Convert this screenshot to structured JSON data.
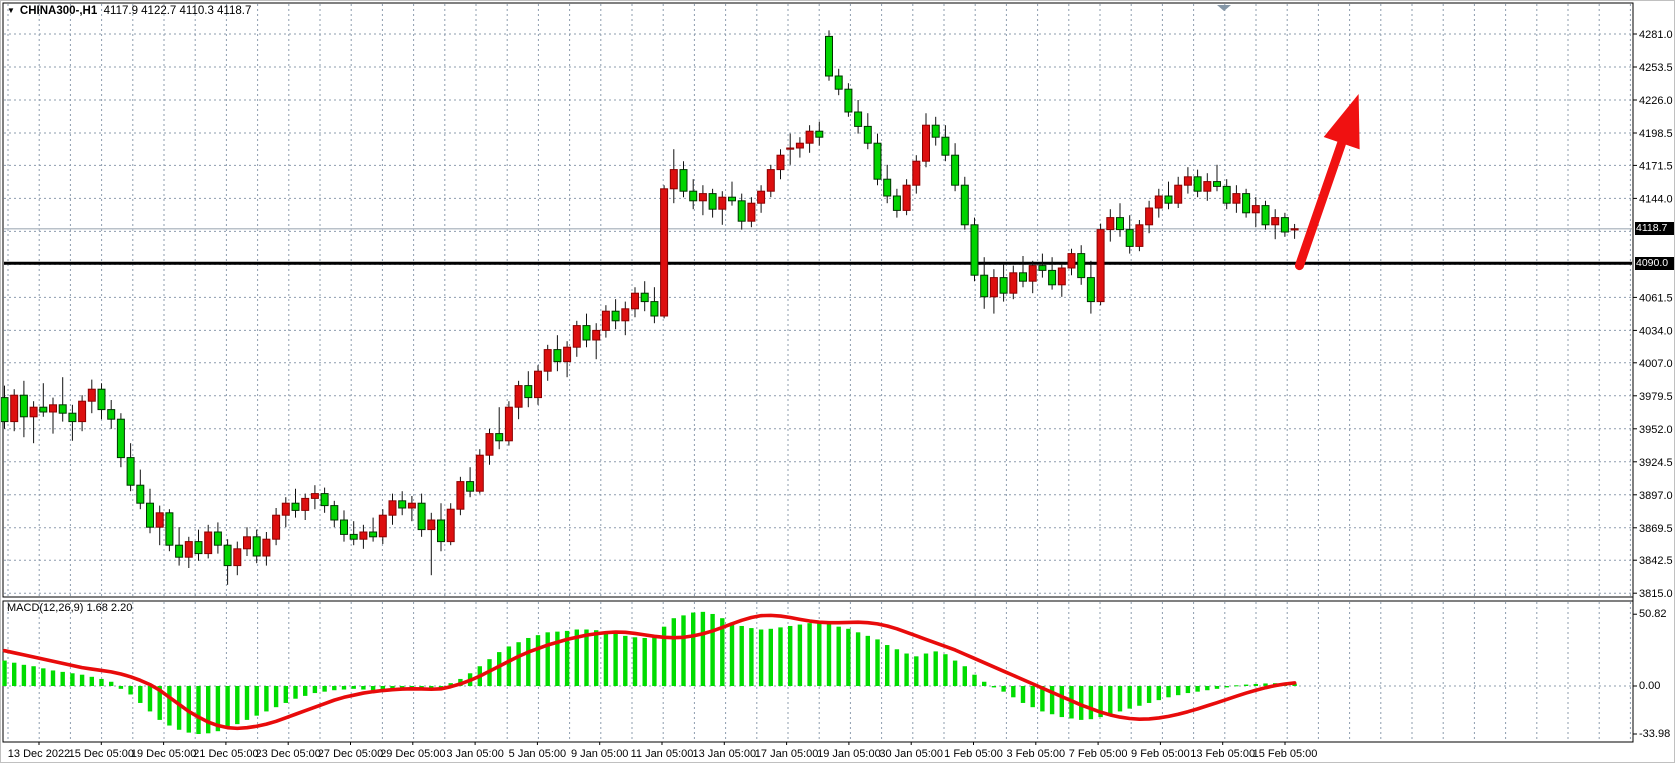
{
  "window": {
    "symbol_period": "CHINA300-,H1",
    "ohlc_readout": "4117.9 4122.7 4110.3 4118.7",
    "macd_label": "MACD(12,26,9) 1.68 2.20",
    "current_price_tag": "4118.7",
    "support_price_tag": "4090.0"
  },
  "colors": {
    "bull_body": "#dd0f0f",
    "bull_border": "#8b0000",
    "bear_body": "#00d400",
    "bear_border": "#003300",
    "wick": "#111111",
    "grid": "#8d9cae",
    "current_price_line": "#b9c1c9",
    "support_line": "#000000",
    "macd_hist": "#00dc00",
    "macd_signal": "#e80b0b",
    "arrow": "#f01111",
    "axis_text": "#000000",
    "scroll_marker": "#8496a6"
  },
  "chart_data": [
    {
      "type": "candlestick",
      "title": "CHINA300-,H1",
      "last_ohlc": {
        "open": 4117.9,
        "high": 4122.7,
        "low": 4110.3,
        "close": 4118.7
      },
      "bull_color_meaning": "red = close>open, green = close<open",
      "y_axis_labels": [
        "4281.0",
        "4253.5",
        "4226.0",
        "4198.5",
        "4171.5",
        "4144.0",
        "4061.5",
        "4034.0",
        "4007.0",
        "3979.5",
        "3952.0",
        "3924.5",
        "3897.0",
        "3869.5",
        "3842.5",
        "3815.0"
      ],
      "y_grid_prices": [
        4281,
        4253.5,
        4226,
        4198.5,
        4171.5,
        4144,
        4116.5,
        4089,
        4061.5,
        4034,
        4007,
        3979.5,
        3952,
        3924.5,
        3897,
        3869.5,
        3842.5,
        3815
      ],
      "ylim": [
        3815,
        4281
      ],
      "x_axis_labels": [
        "13 Dec 2022",
        "15 Dec 05:00",
        "19 Dec 05:00",
        "21 Dec 05:00",
        "23 Dec 05:00",
        "27 Dec 05:00",
        "29 Dec 05:00",
        "3 Jan 05:00",
        "5 Jan 05:00",
        "9 Jan 05:00",
        "11 Jan 05:00",
        "13 Jan 05:00",
        "17 Jan 05:00",
        "19 Jan 05:00",
        "30 Jan 05:00",
        "1 Feb 05:00",
        "3 Feb 05:00",
        "7 Feb 05:00",
        "9 Feb 05:00",
        "13 Feb 05:00",
        "15 Feb 05:00"
      ],
      "support_line_price": 4090.0,
      "current_price": 4118.7,
      "annotation_arrow": {
        "from_candle": 133.5,
        "from_price": 4088,
        "to_candle": 139.6,
        "to_price": 4231
      },
      "candles": [
        [
          3978,
          3988,
          3952,
          3958
        ],
        [
          3958,
          3985,
          3950,
          3980
        ],
        [
          3980,
          3992,
          3945,
          3962
        ],
        [
          3962,
          3975,
          3940,
          3970
        ],
        [
          3970,
          3990,
          3962,
          3966
        ],
        [
          3966,
          3978,
          3948,
          3972
        ],
        [
          3972,
          3995,
          3958,
          3965
        ],
        [
          3965,
          3972,
          3942,
          3958
        ],
        [
          3958,
          3980,
          3950,
          3975
        ],
        [
          3975,
          3993,
          3965,
          3985
        ],
        [
          3985,
          3990,
          3960,
          3968
        ],
        [
          3968,
          3976,
          3952,
          3960
        ],
        [
          3960,
          3965,
          3920,
          3928
        ],
        [
          3928,
          3940,
          3900,
          3905
        ],
        [
          3905,
          3918,
          3885,
          3890
        ],
        [
          3890,
          3902,
          3865,
          3870
        ],
        [
          3870,
          3888,
          3855,
          3882
        ],
        [
          3882,
          3885,
          3850,
          3855
        ],
        [
          3855,
          3870,
          3838,
          3845
        ],
        [
          3845,
          3862,
          3836,
          3858
        ],
        [
          3858,
          3868,
          3842,
          3848
        ],
        [
          3848,
          3872,
          3844,
          3866
        ],
        [
          3866,
          3874,
          3848,
          3855
        ],
        [
          3855,
          3860,
          3822,
          3838
        ],
        [
          3838,
          3858,
          3830,
          3852
        ],
        [
          3852,
          3870,
          3846,
          3862
        ],
        [
          3862,
          3868,
          3840,
          3846
        ],
        [
          3846,
          3866,
          3838,
          3860
        ],
        [
          3860,
          3886,
          3855,
          3880
        ],
        [
          3880,
          3895,
          3870,
          3890
        ],
        [
          3890,
          3902,
          3878,
          3884
        ],
        [
          3884,
          3898,
          3876,
          3894
        ],
        [
          3894,
          3905,
          3885,
          3898
        ],
        [
          3898,
          3903,
          3882,
          3888
        ],
        [
          3888,
          3892,
          3870,
          3876
        ],
        [
          3876,
          3884,
          3858,
          3864
        ],
        [
          3864,
          3875,
          3855,
          3860
        ],
        [
          3860,
          3872,
          3852,
          3866
        ],
        [
          3866,
          3878,
          3858,
          3862
        ],
        [
          3862,
          3885,
          3856,
          3880
        ],
        [
          3880,
          3898,
          3872,
          3892
        ],
        [
          3892,
          3900,
          3880,
          3886
        ],
        [
          3886,
          3896,
          3875,
          3890
        ],
        [
          3890,
          3898,
          3862,
          3868
        ],
        [
          3868,
          3882,
          3830,
          3876
        ],
        [
          3876,
          3890,
          3850,
          3858
        ],
        [
          3858,
          3890,
          3855,
          3885
        ],
        [
          3885,
          3912,
          3880,
          3908
        ],
        [
          3908,
          3920,
          3895,
          3900
        ],
        [
          3900,
          3935,
          3898,
          3930
        ],
        [
          3930,
          3952,
          3922,
          3948
        ],
        [
          3948,
          3970,
          3935,
          3942
        ],
        [
          3942,
          3975,
          3938,
          3970
        ],
        [
          3970,
          3992,
          3960,
          3988
        ],
        [
          3988,
          4000,
          3970,
          3978
        ],
        [
          3978,
          4005,
          3972,
          4000
        ],
        [
          4000,
          4022,
          3992,
          4018
        ],
        [
          4018,
          4030,
          4000,
          4008
        ],
        [
          4008,
          4025,
          3995,
          4020
        ],
        [
          4020,
          4042,
          4012,
          4038
        ],
        [
          4038,
          4048,
          4020,
          4026
        ],
        [
          4026,
          4040,
          4010,
          4034
        ],
        [
          4034,
          4055,
          4028,
          4050
        ],
        [
          4050,
          4060,
          4035,
          4042
        ],
        [
          4042,
          4058,
          4030,
          4052
        ],
        [
          4052,
          4070,
          4045,
          4065
        ],
        [
          4065,
          4075,
          4050,
          4058
        ],
        [
          4058,
          4070,
          4040,
          4046
        ],
        [
          4046,
          4155,
          4044,
          4152
        ],
        [
          4152,
          4185,
          4140,
          4168
        ],
        [
          4168,
          4175,
          4145,
          4150
        ],
        [
          4150,
          4160,
          4135,
          4142
        ],
        [
          4142,
          4155,
          4130,
          4148
        ],
        [
          4148,
          4152,
          4128,
          4135
        ],
        [
          4135,
          4150,
          4122,
          4145
        ],
        [
          4145,
          4158,
          4138,
          4142
        ],
        [
          4142,
          4148,
          4118,
          4125
        ],
        [
          4125,
          4145,
          4120,
          4140
        ],
        [
          4140,
          4155,
          4132,
          4150
        ],
        [
          4150,
          4172,
          4145,
          4168
        ],
        [
          4168,
          4185,
          4160,
          4180
        ],
        [
          4186,
          4198,
          4172,
          4186
        ],
        [
          4186,
          4195,
          4178,
          4190
        ],
        [
          4190,
          4205,
          4182,
          4200
        ],
        [
          4200,
          4208,
          4188,
          4195
        ],
        [
          4279,
          4284,
          4242,
          4246
        ],
        [
          4246,
          4252,
          4230,
          4235
        ],
        [
          4235,
          4240,
          4212,
          4216
        ],
        [
          4216,
          4226,
          4198,
          4204
        ],
        [
          4204,
          4215,
          4185,
          4190
        ],
        [
          4190,
          4198,
          4155,
          4160
        ],
        [
          4160,
          4172,
          4140,
          4146
        ],
        [
          4146,
          4152,
          4128,
          4134
        ],
        [
          4134,
          4160,
          4130,
          4155
        ],
        [
          4155,
          4180,
          4148,
          4175
        ],
        [
          4175,
          4215,
          4170,
          4205
        ],
        [
          4205,
          4212,
          4188,
          4195
        ],
        [
          4195,
          4205,
          4175,
          4180
        ],
        [
          4180,
          4190,
          4150,
          4155
        ],
        [
          4155,
          4162,
          4118,
          4122
        ],
        [
          4122,
          4128,
          4075,
          4080
        ],
        [
          4080,
          4095,
          4052,
          4062
        ],
        [
          4062,
          4085,
          4048,
          4078
        ],
        [
          4078,
          4090,
          4058,
          4065
        ],
        [
          4065,
          4088,
          4060,
          4082
        ],
        [
          4082,
          4096,
          4070,
          4075
        ],
        [
          4075,
          4092,
          4065,
          4088
        ],
        [
          4088,
          4098,
          4078,
          4084
        ],
        [
          4084,
          4095,
          4068,
          4072
        ],
        [
          4072,
          4090,
          4062,
          4086
        ],
        [
          4086,
          4102,
          4080,
          4098
        ],
        [
          4098,
          4105,
          4072,
          4078
        ],
        [
          4078,
          4092,
          4048,
          4058
        ],
        [
          4058,
          4123,
          4055,
          4118
        ],
        [
          4118,
          4135,
          4108,
          4128
        ],
        [
          4128,
          4140,
          4112,
          4118
        ],
        [
          4118,
          4130,
          4098,
          4104
        ],
        [
          4104,
          4126,
          4100,
          4122
        ],
        [
          4122,
          4142,
          4115,
          4136
        ],
        [
          4136,
          4152,
          4128,
          4146
        ],
        [
          4146,
          4158,
          4135,
          4140
        ],
        [
          4140,
          4162,
          4136,
          4155
        ],
        [
          4155,
          4170,
          4148,
          4162
        ],
        [
          4162,
          4168,
          4145,
          4150
        ],
        [
          4150,
          4165,
          4142,
          4158
        ],
        [
          4158,
          4172,
          4150,
          4154
        ],
        [
          4154,
          4160,
          4135,
          4140
        ],
        [
          4140,
          4155,
          4132,
          4148
        ],
        [
          4148,
          4152,
          4128,
          4132
        ],
        [
          4132,
          4145,
          4120,
          4138
        ],
        [
          4138,
          4142,
          4118,
          4122
        ],
        [
          4122,
          4135,
          4110,
          4128
        ],
        [
          4128,
          4132,
          4112,
          4116
        ],
        [
          4117.9,
          4122.7,
          4110.3,
          4118.7
        ]
      ]
    },
    {
      "type": "bar",
      "title": "MACD(12,26,9)",
      "current_values": {
        "macd": 1.68,
        "signal": 2.2
      },
      "y_ticks": [
        {
          "label": "50.82",
          "value": 50.82
        },
        {
          "label": "0.00",
          "value": 0
        },
        {
          "label": "-33.98",
          "value": -33.98
        }
      ],
      "ylim": [
        -33.98,
        50.82
      ],
      "histogram": [
        18,
        16.5,
        15,
        14,
        12.5,
        11,
        10,
        9,
        8,
        6.5,
        5,
        3,
        -2,
        -6,
        -12,
        -18,
        -24,
        -28,
        -31,
        -33,
        -34,
        -33.5,
        -32,
        -30,
        -27,
        -24,
        -21,
        -18,
        -15,
        -12,
        -9,
        -7,
        -5,
        -4,
        -3,
        -2.5,
        -2,
        -2.5,
        -3,
        -3.5,
        -3,
        -2.5,
        -2,
        -2.5,
        -3,
        -2,
        2,
        5,
        9,
        14,
        19,
        24,
        28,
        31,
        34,
        36,
        38,
        38.5,
        39,
        40,
        40,
        39.5,
        38.5,
        37,
        35.5,
        34.5,
        34,
        36,
        42,
        48,
        50,
        52,
        52.5,
        51,
        48,
        45,
        42.5,
        41,
        40,
        40.5,
        41.5,
        42.5,
        43.5,
        44.5,
        45,
        44,
        42,
        40.5,
        38,
        35.5,
        33,
        29,
        26,
        23,
        21,
        23,
        24.5,
        22.5,
        18,
        14,
        8,
        3,
        -1,
        -4,
        -8,
        -12,
        -15,
        -18,
        -20,
        -22,
        -23,
        -24,
        -23.5,
        -22,
        -20,
        -18,
        -16,
        -14,
        -12,
        -10,
        -8,
        -6.5,
        -5,
        -4,
        -3,
        -2,
        -1,
        0.5,
        1,
        1.4,
        1.8,
        2,
        1.9,
        1.7
      ],
      "signal_line": [
        25,
        23.5,
        22,
        20.5,
        19,
        17.5,
        16,
        14.5,
        13,
        12,
        11,
        10,
        8.5,
        6.5,
        4,
        1,
        -3,
        -8,
        -13,
        -18,
        -22,
        -25.5,
        -28,
        -29.5,
        -30,
        -29.5,
        -28.5,
        -27,
        -25,
        -22.5,
        -20,
        -17.5,
        -15,
        -12.5,
        -10,
        -8,
        -6.5,
        -5,
        -4,
        -3.2,
        -2.6,
        -2.2,
        -2,
        -2.1,
        -2.3,
        -2,
        -0.5,
        1.5,
        4,
        7,
        10.5,
        14,
        17.5,
        21,
        24,
        26.5,
        29,
        31,
        33,
        34.5,
        36,
        37,
        37.8,
        38.2,
        38,
        37.2,
        36.2,
        35.2,
        34.5,
        34.2,
        34.5,
        35.5,
        37,
        39,
        41.5,
        44,
        46.5,
        48.5,
        49.8,
        50,
        49.5,
        48.5,
        47.2,
        46,
        45.2,
        44.8,
        44.8,
        45,
        45.2,
        44.8,
        44,
        42.5,
        40.5,
        38,
        35.5,
        33,
        30.5,
        28,
        25.5,
        22.5,
        19.5,
        16.5,
        13.5,
        10.5,
        7.5,
        4.5,
        1.5,
        -1.5,
        -4.5,
        -7.5,
        -10.5,
        -13.5,
        -16,
        -18.5,
        -20.5,
        -22,
        -23,
        -23.5,
        -23.3,
        -22.6,
        -21.5,
        -20,
        -18.2,
        -16.2,
        -14,
        -11.8,
        -9.5,
        -7.2,
        -5,
        -3,
        -1.2,
        0.3,
        1.4,
        2.2
      ]
    }
  ]
}
